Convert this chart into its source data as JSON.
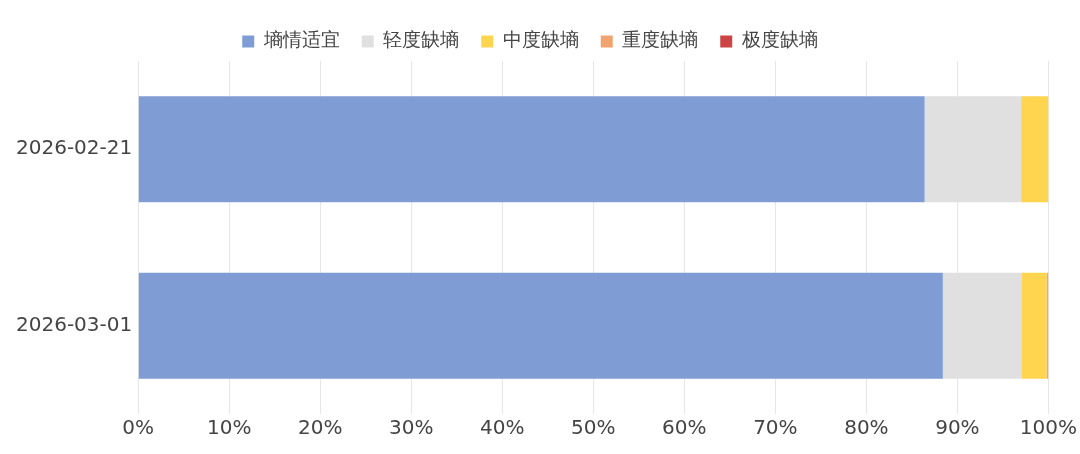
{
  "chart_data": {
    "type": "bar",
    "orientation": "horizontal",
    "stacked": true,
    "categories": [
      "2026-02-21",
      "2026-03-01"
    ],
    "series": [
      {
        "name": "墒情适宜",
        "color": "#7f9dd4",
        "values": [
          86.4,
          88.4
        ]
      },
      {
        "name": "轻度缺墒",
        "color": "#e0e0e0",
        "values": [
          10.6,
          8.7
        ]
      },
      {
        "name": "中度缺墒",
        "color": "#ffd54f",
        "values": [
          3.0,
          2.7
        ]
      },
      {
        "name": "重度缺墒",
        "color": "#f0a36e",
        "values": [
          0,
          0.2
        ]
      },
      {
        "name": "极度缺墒",
        "color": "#cc4444",
        "values": [
          0,
          0
        ]
      }
    ],
    "xlim": [
      0,
      100
    ],
    "xticks": [
      {
        "value": 0,
        "label": "0%"
      },
      {
        "value": 10,
        "label": "10%"
      },
      {
        "value": 20,
        "label": "20%"
      },
      {
        "value": 30,
        "label": "30%"
      },
      {
        "value": 40,
        "label": "40%"
      },
      {
        "value": 50,
        "label": "50%"
      },
      {
        "value": 60,
        "label": "60%"
      },
      {
        "value": 70,
        "label": "70%"
      },
      {
        "value": 80,
        "label": "80%"
      },
      {
        "value": 90,
        "label": "90%"
      },
      {
        "value": 100,
        "label": "100%"
      }
    ],
    "grid": "x",
    "legend": "top"
  }
}
